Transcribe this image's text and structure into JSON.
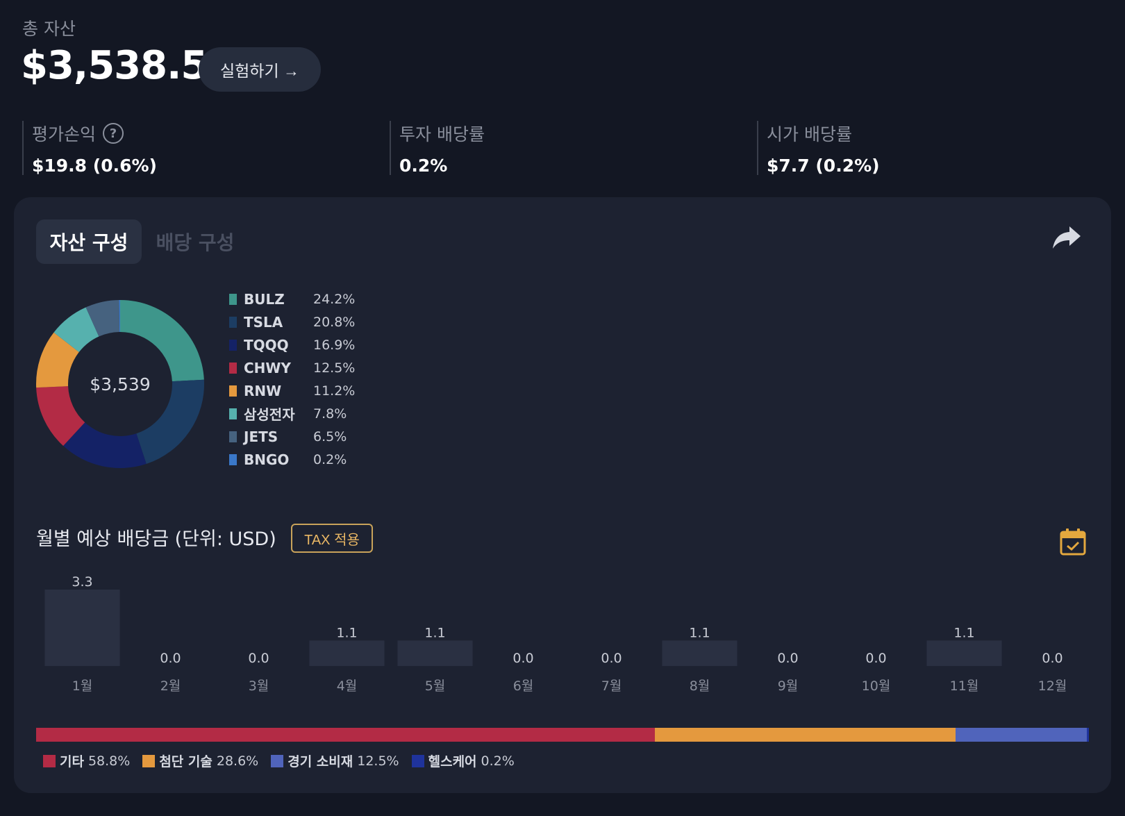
{
  "header": {
    "total_label": "총 자산",
    "total_value": "$3,538.5",
    "experiment_button": "실험하기 →"
  },
  "stats": [
    {
      "label": "평가손익",
      "value": "$19.8 (0.6%)",
      "has_help": true
    },
    {
      "label": "투자 배당률",
      "value": "0.2%"
    },
    {
      "label": "시가 배당률",
      "value": "$7.7 (0.2%)"
    }
  ],
  "tabs": {
    "active": "자산 구성",
    "inactive": "배당 구성"
  },
  "icons": {
    "share": "share-icon",
    "calendar": "calendar-check-icon",
    "help": "help-icon"
  },
  "chart_data": [
    {
      "type": "pie",
      "center_label": "$3,539",
      "slices": [
        {
          "name": "BULZ",
          "value": 24.2,
          "label": "24.2%",
          "color": "#3e968b"
        },
        {
          "name": "TSLA",
          "value": 20.8,
          "label": "20.8%",
          "color": "#1c3d63"
        },
        {
          "name": "TQQQ",
          "value": 16.9,
          "label": "16.9%",
          "color": "#142266"
        },
        {
          "name": "CHWY",
          "value": 12.5,
          "label": "12.5%",
          "color": "#b32b45"
        },
        {
          "name": "RNW",
          "value": 11.2,
          "label": "11.2%",
          "color": "#e4993e"
        },
        {
          "name": "삼성전자",
          "value": 7.8,
          "label": "7.8%",
          "color": "#56b1ae"
        },
        {
          "name": "JETS",
          "value": 6.5,
          "label": "6.5%",
          "color": "#46627f"
        },
        {
          "name": "BNGO",
          "value": 0.2,
          "label": "0.2%",
          "color": "#3a78c9"
        }
      ]
    },
    {
      "type": "bar",
      "title": "월별 예상 배당금 (단위: USD)",
      "tax_button": "TAX 적용",
      "categories": [
        "1월",
        "2월",
        "3월",
        "4월",
        "5월",
        "6월",
        "7월",
        "8월",
        "9월",
        "10월",
        "11월",
        "12월"
      ],
      "values": [
        3.3,
        0.0,
        0.0,
        1.1,
        1.1,
        0.0,
        0.0,
        1.1,
        0.0,
        0.0,
        1.1,
        0.0
      ],
      "value_labels": [
        "3.3",
        "0.0",
        "0.0",
        "1.1",
        "1.1",
        "0.0",
        "0.0",
        "1.1",
        "0.0",
        "0.0",
        "1.1",
        "0.0"
      ],
      "bar_color": "#2a3042"
    },
    {
      "type": "bar",
      "stacked": true,
      "orientation": "horizontal",
      "sectors": [
        {
          "name": "기타",
          "value": 58.8,
          "label": "58.8%",
          "color": "#b32b45"
        },
        {
          "name": "첨단 기술",
          "value": 28.6,
          "label": "28.6%",
          "color": "#e4993e"
        },
        {
          "name": "경기 소비재",
          "value": 12.5,
          "label": "12.5%",
          "color": "#5064bb"
        },
        {
          "name": "헬스케어",
          "value": 0.2,
          "label": "0.2%",
          "color": "#1f339c"
        }
      ]
    }
  ]
}
